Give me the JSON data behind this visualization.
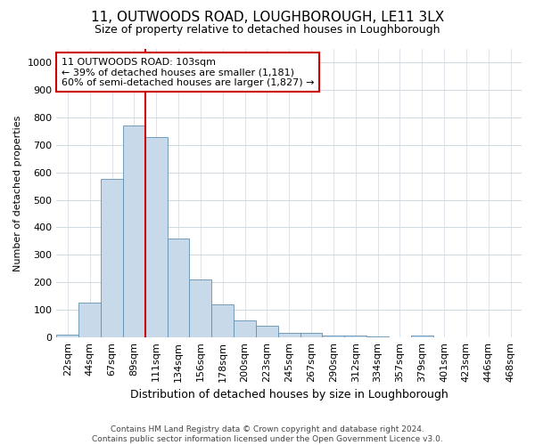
{
  "title": "11, OUTWOODS ROAD, LOUGHBOROUGH, LE11 3LX",
  "subtitle": "Size of property relative to detached houses in Loughborough",
  "xlabel": "Distribution of detached houses by size in Loughborough",
  "ylabel": "Number of detached properties",
  "footer_line1": "Contains HM Land Registry data © Crown copyright and database right 2024.",
  "footer_line2": "Contains public sector information licensed under the Open Government Licence v3.0.",
  "bin_labels": [
    "22sqm",
    "44sqm",
    "67sqm",
    "89sqm",
    "111sqm",
    "134sqm",
    "156sqm",
    "178sqm",
    "200sqm",
    "223sqm",
    "245sqm",
    "267sqm",
    "290sqm",
    "312sqm",
    "334sqm",
    "357sqm",
    "379sqm",
    "401sqm",
    "423sqm",
    "446sqm",
    "468sqm"
  ],
  "bar_values": [
    10,
    125,
    575,
    770,
    730,
    360,
    210,
    120,
    62,
    40,
    15,
    15,
    5,
    5,
    2,
    0,
    5,
    0,
    0,
    0,
    0
  ],
  "bar_color": "#c8d9ea",
  "bar_edge_color": "#6090b0",
  "vline_color": "#cc0000",
  "vline_x_idx": 4,
  "annotation_text": "11 OUTWOODS ROAD: 103sqm\n← 39% of detached houses are smaller (1,181)\n60% of semi-detached houses are larger (1,827) →",
  "annotation_box_color": "#ffffff",
  "annotation_box_edge_color": "#cc0000",
  "ylim": [
    0,
    1050
  ],
  "yticks": [
    0,
    100,
    200,
    300,
    400,
    500,
    600,
    700,
    800,
    900,
    1000
  ],
  "grid_color": "#d0d8e0",
  "background_color": "#ffffff",
  "title_fontsize": 11,
  "subtitle_fontsize": 9,
  "xlabel_fontsize": 9,
  "ylabel_fontsize": 8,
  "tick_fontsize": 8,
  "footer_fontsize": 6.5,
  "annotation_fontsize": 8
}
